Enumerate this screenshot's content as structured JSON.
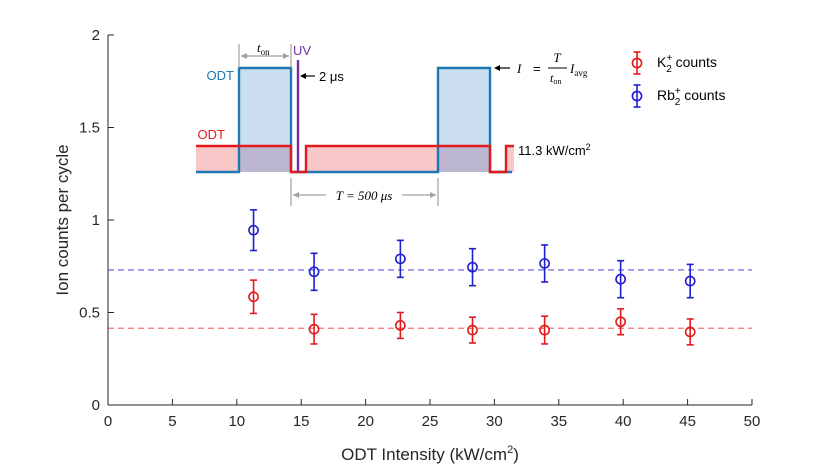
{
  "chart_data": {
    "type": "scatter",
    "xlabel": "ODT Intensity (kW/cm",
    "xlabel_sup": "2",
    "xlabel_tail": ")",
    "ylabel": "Ion counts per cycle",
    "xlim": [
      0,
      50
    ],
    "ylim": [
      0,
      2
    ],
    "xticks": [
      "0",
      "5",
      "10",
      "15",
      "20",
      "25",
      "30",
      "35",
      "40",
      "45",
      "50"
    ],
    "yticks": [
      "0",
      "0.5",
      "1",
      "1.5",
      "2"
    ],
    "x": [
      11.3,
      16.0,
      22.7,
      28.3,
      33.9,
      39.8,
      45.2
    ],
    "series": [
      {
        "name": "K2+ counts",
        "label_main": "K",
        "label_sub": "2",
        "label_sup": "+",
        "label_tail": " counts",
        "color": "#e31a1c",
        "values": [
          0.585,
          0.41,
          0.43,
          0.405,
          0.405,
          0.45,
          0.395
        ],
        "errors": [
          0.09,
          0.08,
          0.07,
          0.07,
          0.075,
          0.07,
          0.07
        ],
        "mean": 0.415
      },
      {
        "name": "Rb2+ counts",
        "label_main": "Rb",
        "label_sub": "2",
        "label_sup": "+",
        "label_tail": " counts",
        "color": "#1f1fd0",
        "values": [
          0.945,
          0.72,
          0.79,
          0.745,
          0.765,
          0.68,
          0.67
        ],
        "errors": [
          0.11,
          0.1,
          0.1,
          0.1,
          0.1,
          0.1,
          0.09
        ],
        "mean": 0.73
      }
    ],
    "inset": {
      "t_on": "t",
      "t_on_sub": "on",
      "uv": "UV",
      "odt_blue": "ODT",
      "odt_red": "ODT",
      "two_us": "2 μs",
      "period_T": "T",
      "period_eq": " = 500 ",
      "period_unit": "μs",
      "formula_I": "I",
      "formula_eq": "=",
      "formula_T": "T",
      "formula_ton": "t",
      "formula_ton_sub": "on",
      "formula_Iavg": "I",
      "formula_Iavg_sub": "avg",
      "intensity": "11.3 kW/cm",
      "intensity_sup": "2"
    }
  },
  "colors": {
    "blue_pulse": "#1f77b4",
    "blue_fill": "#c6dcf0",
    "red_pulse": "#e31a1c",
    "red_fill": "#f8c8c8",
    "uv": "#7030a0",
    "gray": "#a0a0a0"
  }
}
